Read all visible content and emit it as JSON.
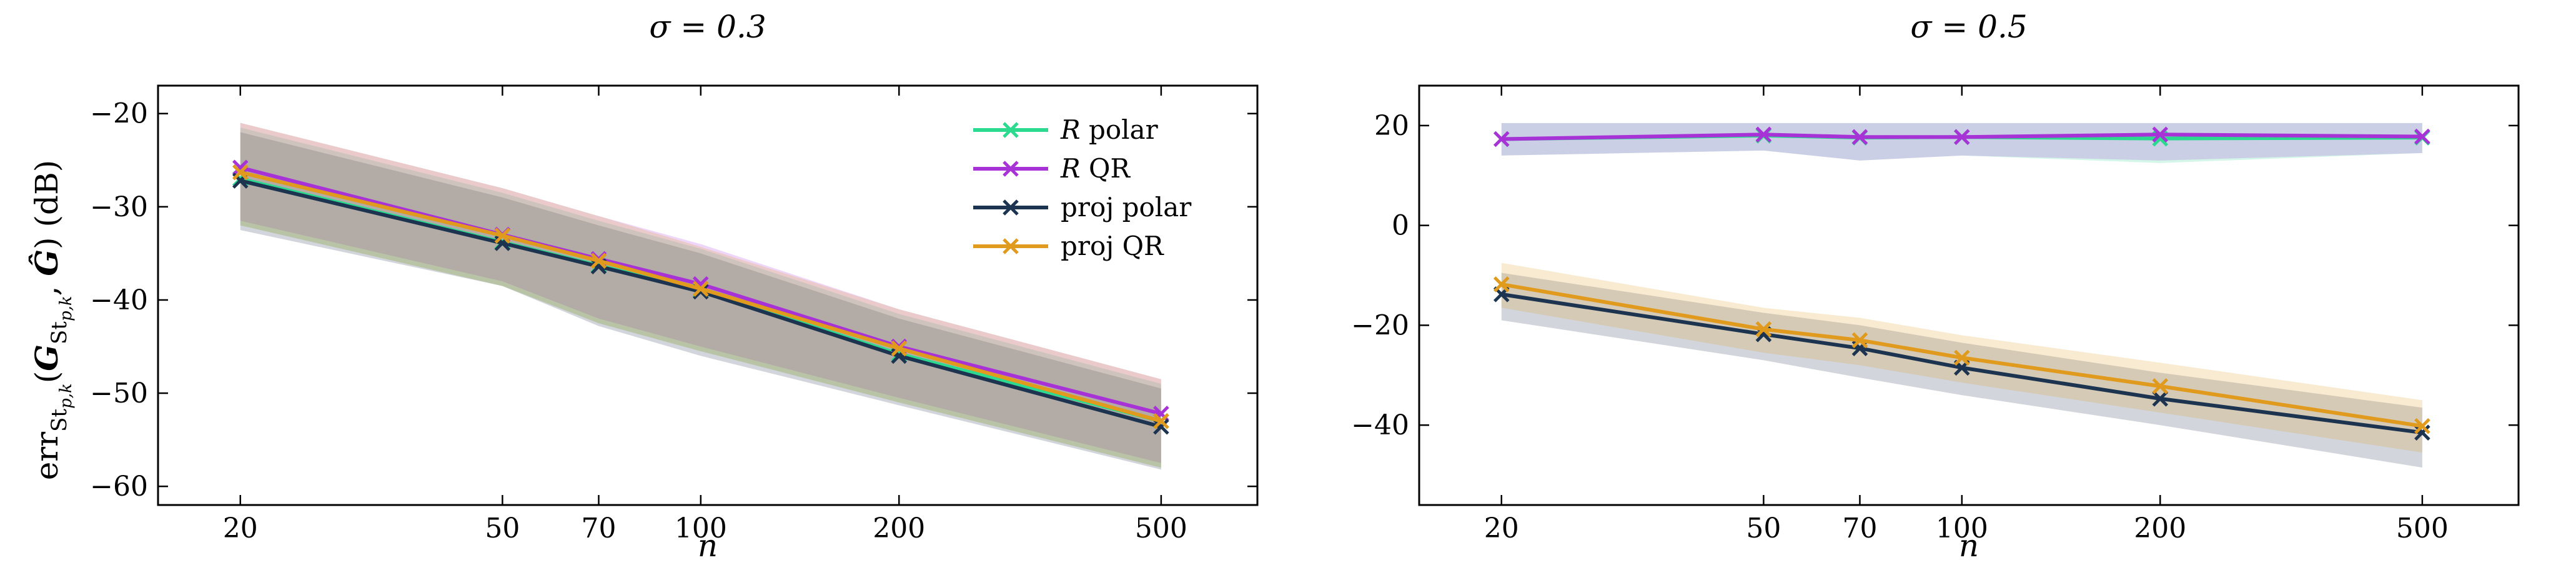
{
  "chart_data": [
    {
      "type": "line",
      "title": "σ = 0.3",
      "xlabel": "n",
      "ylabel": "err_{St_{p,k}}(G_{St_{p,k}}, Ĝ) (dB)",
      "x_scale": "log",
      "x": [
        20,
        50,
        70,
        100,
        200,
        500
      ],
      "x_ticks": [
        "20",
        "50",
        "70",
        "100",
        "200",
        "500"
      ],
      "xlim": [
        15,
        700
      ],
      "ylim": [
        -62,
        -17
      ],
      "y_ticks": [
        -20,
        -30,
        -40,
        -50,
        -60
      ],
      "y_tick_labels": [
        "−20",
        "−30",
        "−40",
        "−50",
        "−60"
      ],
      "legend_position": "top-right",
      "series": [
        {
          "name": "R polar",
          "legend_prefix": "R",
          "legend_suffix": " polar",
          "color": "#2bd98f",
          "values": [
            -27.0,
            -33.8,
            -36.3,
            -39.0,
            -45.8,
            -53.0
          ],
          "band_low": [
            -32.0,
            -38.5,
            -42.5,
            -45.5,
            -51.0,
            -58.0
          ],
          "band_high": [
            -21.5,
            -28.5,
            -31.5,
            -34.5,
            -41.5,
            -49.0
          ]
        },
        {
          "name": "R QR",
          "legend_prefix": "R",
          "legend_suffix": " QR",
          "color": "#a733d6",
          "values": [
            -25.8,
            -33.0,
            -35.6,
            -38.3,
            -45.0,
            -52.2
          ],
          "band_low": [
            -31.5,
            -38.0,
            -42.0,
            -45.0,
            -50.5,
            -57.5
          ],
          "band_high": [
            -21.0,
            -28.0,
            -31.0,
            -34.0,
            -41.0,
            -48.5
          ]
        },
        {
          "name": "proj polar",
          "legend_prefix": "",
          "legend_suffix": "proj polar",
          "color": "#1c3450",
          "values": [
            -27.2,
            -33.9,
            -36.4,
            -39.1,
            -46.0,
            -53.6
          ],
          "band_low": [
            -32.5,
            -38.5,
            -42.8,
            -46.0,
            -51.3,
            -58.2
          ],
          "band_high": [
            -22.0,
            -29.0,
            -32.0,
            -35.0,
            -42.0,
            -49.5
          ]
        },
        {
          "name": "proj QR",
          "legend_prefix": "",
          "legend_suffix": "proj QR",
          "color": "#e09a1d",
          "values": [
            -26.3,
            -33.1,
            -35.8,
            -38.8,
            -45.2,
            -53.0
          ],
          "band_low": [
            -32.0,
            -38.5,
            -42.5,
            -45.5,
            -51.0,
            -58.0
          ],
          "band_high": [
            -21.0,
            -28.0,
            -31.0,
            -34.3,
            -41.0,
            -48.5
          ]
        }
      ]
    },
    {
      "type": "line",
      "title": "σ = 0.5",
      "xlabel": "n",
      "ylabel": "",
      "x_scale": "log",
      "x": [
        20,
        50,
        70,
        100,
        200,
        500
      ],
      "x_ticks": [
        "20",
        "50",
        "70",
        "100",
        "200",
        "500"
      ],
      "xlim": [
        15,
        700
      ],
      "ylim": [
        -56,
        28
      ],
      "y_ticks": [
        20,
        0,
        -20,
        -40
      ],
      "y_tick_labels": [
        "20",
        "0",
        "−20",
        "−40"
      ],
      "series": [
        {
          "name": "R polar",
          "color": "#2bd98f",
          "values": [
            17.3,
            18.0,
            17.6,
            17.7,
            17.4,
            17.6
          ],
          "band_low": [
            14.0,
            15.0,
            13.0,
            14.0,
            12.5,
            14.5
          ],
          "band_high": [
            20.5,
            20.5,
            20.5,
            20.5,
            20.5,
            20.5
          ]
        },
        {
          "name": "R QR",
          "color": "#a733d6",
          "values": [
            17.3,
            18.2,
            17.7,
            17.7,
            18.2,
            17.8
          ],
          "band_low": [
            14.0,
            15.0,
            13.0,
            14.0,
            13.0,
            14.5
          ],
          "band_high": [
            20.5,
            20.5,
            20.5,
            20.5,
            20.5,
            20.5
          ]
        },
        {
          "name": "proj polar",
          "color": "#1c3450",
          "values": [
            -13.8,
            -21.8,
            -24.6,
            -28.5,
            -34.7,
            -41.5
          ],
          "band_low": [
            -19.0,
            -27.0,
            -30.5,
            -34.0,
            -40.0,
            -48.5
          ],
          "band_high": [
            -9.5,
            -17.5,
            -20.0,
            -23.5,
            -29.5,
            -36.5
          ]
        },
        {
          "name": "proj QR",
          "color": "#e09a1d",
          "values": [
            -11.8,
            -20.8,
            -23.0,
            -26.5,
            -32.2,
            -40.2
          ],
          "band_low": [
            -16.5,
            -25.5,
            -28.0,
            -31.5,
            -37.5,
            -45.5
          ],
          "band_high": [
            -7.5,
            -16.5,
            -18.5,
            -22.0,
            -27.5,
            -35.0
          ]
        }
      ]
    }
  ]
}
